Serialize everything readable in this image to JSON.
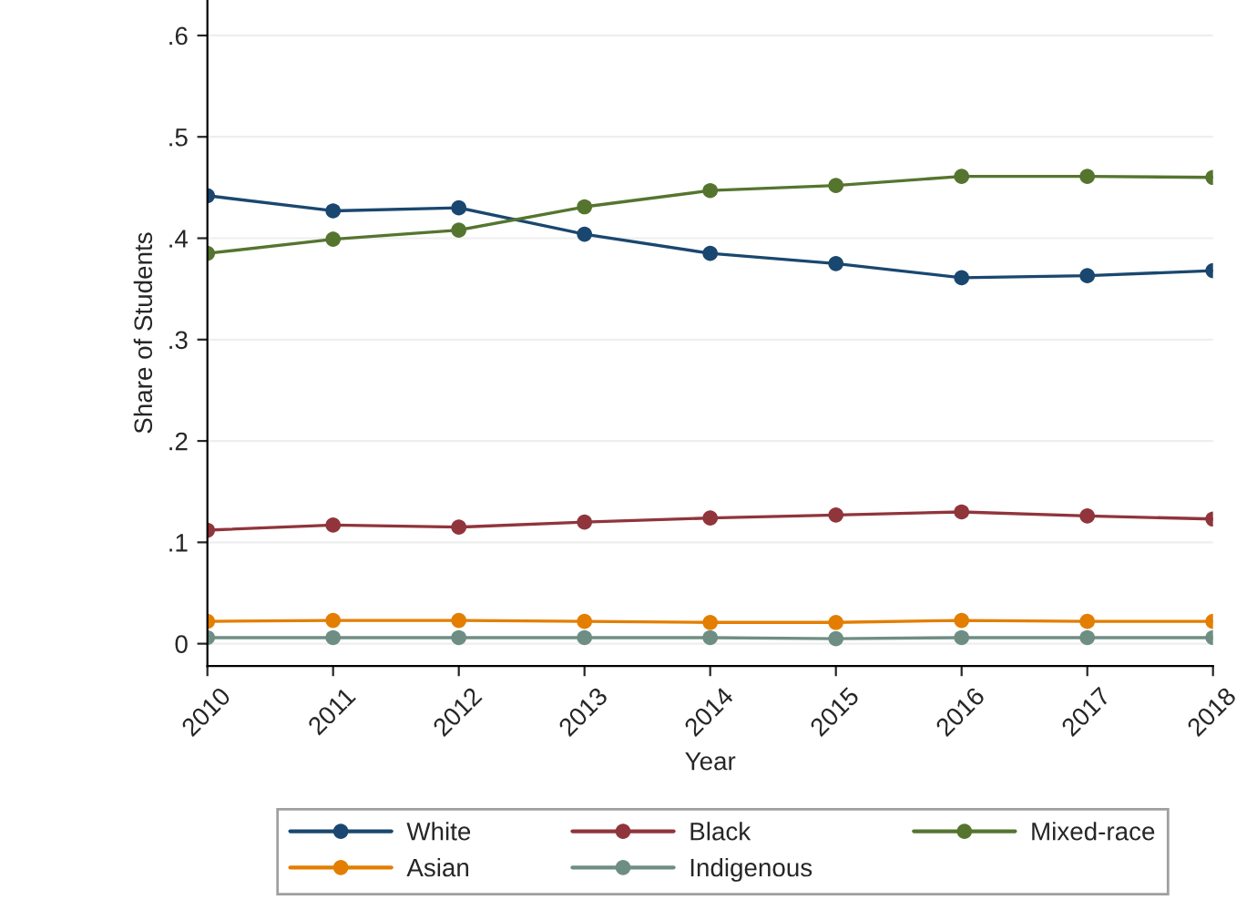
{
  "chart_data": {
    "type": "line",
    "xlabel": "Year",
    "ylabel": "Share of Students",
    "x": [
      2010,
      2011,
      2012,
      2013,
      2014,
      2015,
      2016,
      2017,
      2018
    ],
    "xlim": [
      2010,
      2018
    ],
    "xticks": [
      2010,
      2011,
      2012,
      2013,
      2014,
      2015,
      2016,
      2017,
      2018
    ],
    "ylim": [
      -0.022,
      0.635
    ],
    "yticks": [
      {
        "value": 0,
        "label": "0"
      },
      {
        "value": 0.1,
        "label": ".1"
      },
      {
        "value": 0.2,
        "label": ".2"
      },
      {
        "value": 0.3,
        "label": ".3"
      },
      {
        "value": 0.4,
        "label": ".4"
      },
      {
        "value": 0.5,
        "label": ".5"
      },
      {
        "value": 0.6,
        "label": ".6"
      }
    ],
    "grid": "y",
    "legend": "bottom",
    "marker": "circle",
    "line_style": "solid",
    "series": [
      {
        "name": "White",
        "color": "#1a476f",
        "values": [
          0.442,
          0.427,
          0.43,
          0.404,
          0.385,
          0.375,
          0.361,
          0.363,
          0.368
        ]
      },
      {
        "name": "Black",
        "color": "#90353b",
        "values": [
          0.112,
          0.117,
          0.115,
          0.12,
          0.124,
          0.127,
          0.13,
          0.126,
          0.123
        ]
      },
      {
        "name": "Mixed-race",
        "color": "#55752f",
        "values": [
          0.385,
          0.399,
          0.408,
          0.431,
          0.447,
          0.452,
          0.461,
          0.461,
          0.46
        ]
      },
      {
        "name": "Asian",
        "color": "#e37e00",
        "values": [
          0.022,
          0.023,
          0.023,
          0.022,
          0.021,
          0.021,
          0.023,
          0.022,
          0.022
        ]
      },
      {
        "name": "Indigenous",
        "color": "#6e8e84",
        "values": [
          0.006,
          0.006,
          0.006,
          0.006,
          0.006,
          0.005,
          0.006,
          0.006,
          0.006
        ]
      }
    ]
  }
}
